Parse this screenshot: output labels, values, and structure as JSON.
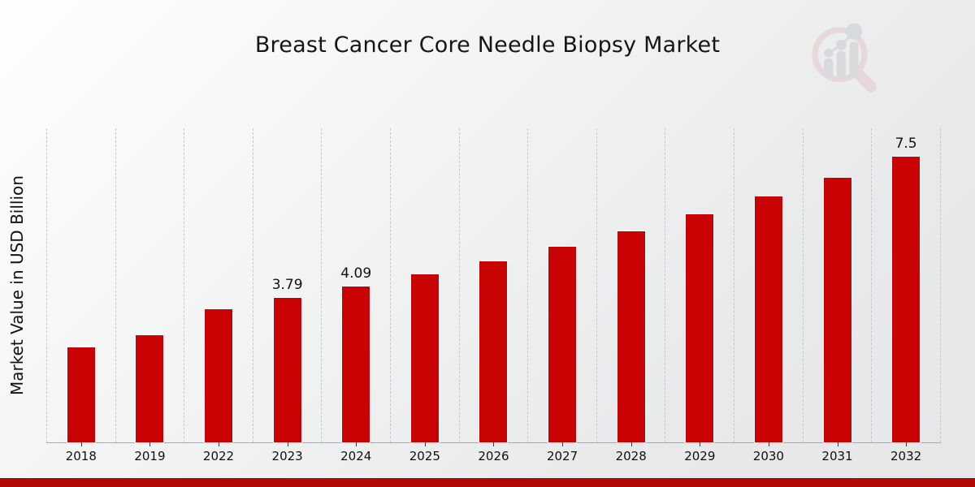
{
  "page": {
    "title": "Breast Cancer Core Needle Biopsy Market",
    "footer_color": "#b20707",
    "logo_icon": "magnifier-bar-chart-icon"
  },
  "chart_data": {
    "type": "bar",
    "title": "Breast Cancer Core Needle Biopsy Market",
    "xlabel": "",
    "ylabel": "Market Value in USD Billion",
    "ylim": [
      0,
      8.25
    ],
    "grid": "vertical-dashed",
    "legend": "none",
    "bar_color": "#c90303",
    "categories": [
      "2018",
      "2019",
      "2022",
      "2023",
      "2024",
      "2025",
      "2026",
      "2027",
      "2028",
      "2029",
      "2030",
      "2031",
      "2032"
    ],
    "values": [
      2.5,
      2.81,
      3.5,
      3.79,
      4.09,
      4.41,
      4.76,
      5.13,
      5.54,
      5.98,
      6.45,
      6.95,
      7.5
    ],
    "data_labels": [
      "",
      "",
      "",
      "3.79",
      "4.09",
      "",
      "",
      "",
      "",
      "",
      "",
      "",
      "7.5"
    ]
  }
}
